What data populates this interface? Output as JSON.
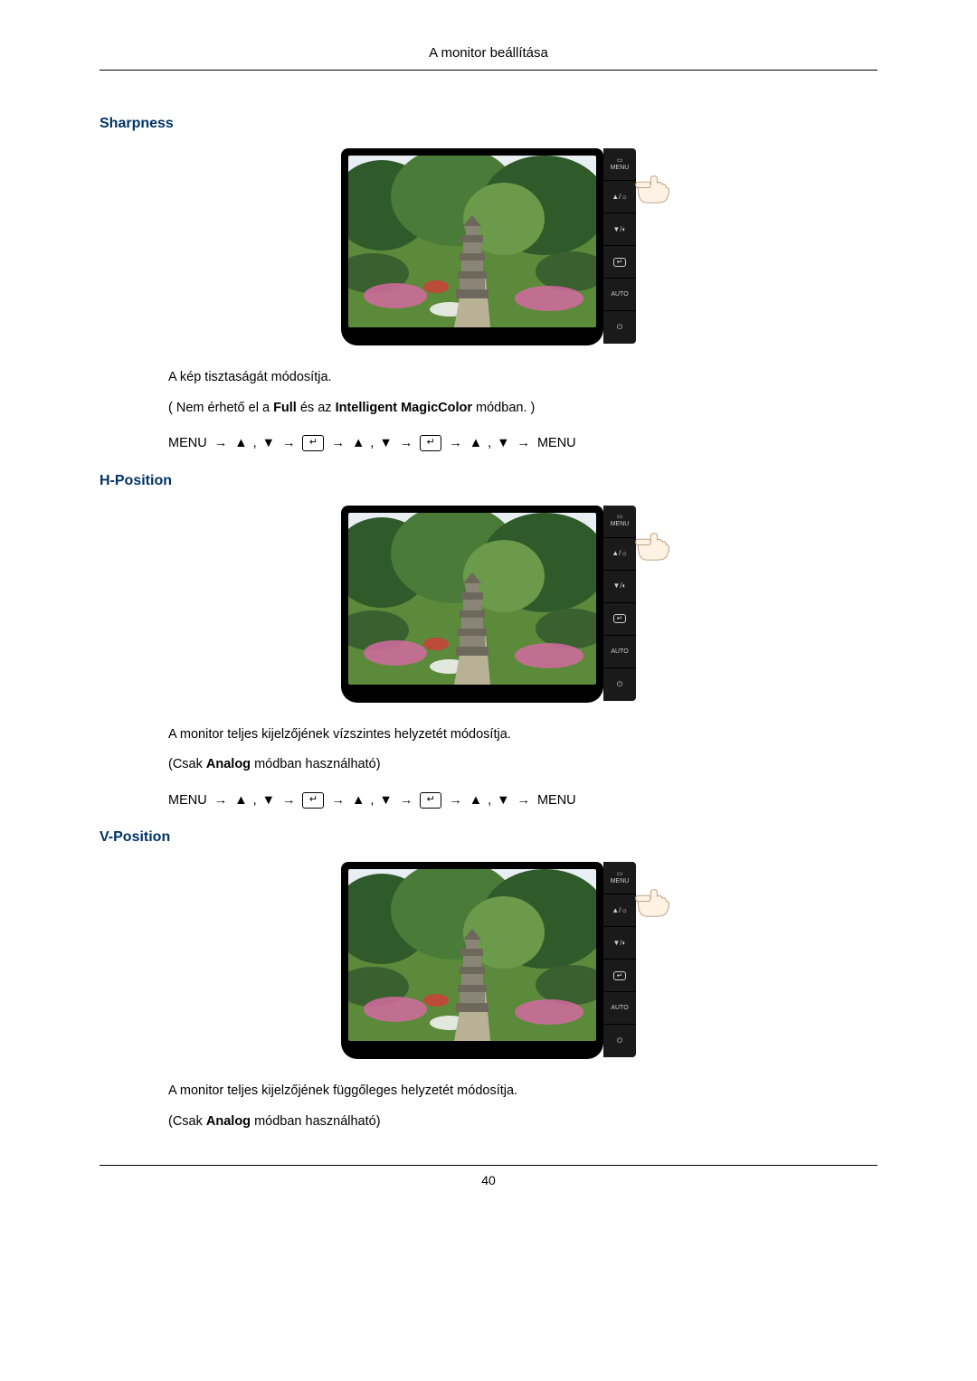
{
  "header": {
    "title": "A monitor beállítása"
  },
  "headings": {
    "sharpness": {
      "color": "#003366",
      "text": "Sharpness"
    },
    "hposition": {
      "color": "#003366",
      "text": "H-Position"
    },
    "vposition": {
      "color": "#003366",
      "text": "V-Position"
    }
  },
  "sharpness": {
    "desc": "A kép tisztaságát módosítja.",
    "note_pre": "( Nem érhető el a ",
    "note_bold1": "Full",
    "note_mid": " és az ",
    "note_bold2": "Intelligent MagicColor",
    "note_post": " módban. )"
  },
  "hposition": {
    "desc": "A monitor teljes kijelzőjének vízszintes helyzetét módosítja.",
    "note_pre": "(Csak ",
    "note_bold": "Analog",
    "note_post": " módban használható)"
  },
  "vposition": {
    "desc": "A monitor teljes kijelzőjének függőleges helyzetét módosítja.",
    "note_pre": "(Csak ",
    "note_bold": "Analog",
    "note_post": " módban használható)"
  },
  "nav": {
    "menu": "MENU",
    "arrow": "→",
    "up": "▲",
    "down": "▼",
    "comma": " , ",
    "enter": "↵"
  },
  "buttons": {
    "menu_label": "MENU",
    "auto_label": "AUTO"
  },
  "footer": {
    "page": "40"
  },
  "monitor": {
    "frame_color": "#000000",
    "btn_bg": "#1a1a1a",
    "btn_fg": "#cfcfcf",
    "finger_fill": "#fdf2e4",
    "finger_stroke": "#b89a7a"
  },
  "garden": {
    "sky": "#e8eef2",
    "tree1": "#2f5a2a",
    "tree2": "#4a7b38",
    "tree3": "#6a9a4a",
    "grass": "#5b8a3a",
    "path": "#b9b196",
    "stone": "#8b8578",
    "stone_dark": "#6e685c",
    "flower_pink": "#d46aa0",
    "flower_white": "#f2f2f2",
    "flower_red": "#c8443a",
    "bush": "#3a6030"
  }
}
